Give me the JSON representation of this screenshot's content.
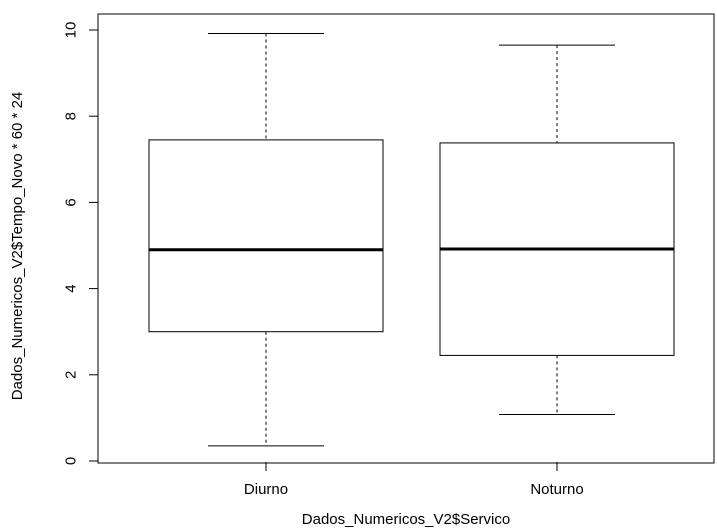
{
  "chart_data": {
    "type": "box",
    "title": "",
    "xlabel": "Dados_Numericos_V2$Servico",
    "ylabel": "Dados_Numericos_V2$Tempo_Novo * 60 * 24",
    "ylim": [
      0,
      10
    ],
    "yticks": [
      "0",
      "2",
      "4",
      "6",
      "8",
      "10"
    ],
    "categories": [
      "Diurno",
      "Noturno"
    ],
    "boxes": [
      {
        "category": "Diurno",
        "min": 0.35,
        "q1": 3.0,
        "median": 4.9,
        "q3": 7.45,
        "max": 9.92
      },
      {
        "category": "Noturno",
        "min": 1.08,
        "q1": 2.45,
        "median": 4.92,
        "q3": 7.38,
        "max": 9.65
      }
    ],
    "grid": false,
    "colors": {
      "box_fill": "#ffffff",
      "stroke": "#000000"
    }
  }
}
